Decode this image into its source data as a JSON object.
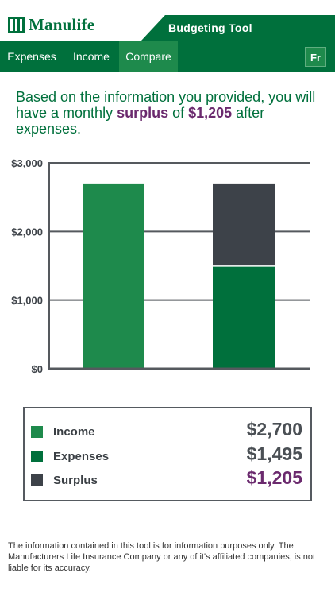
{
  "header": {
    "logo_text": "Manulife",
    "tool_title": "Budgeting Tool"
  },
  "nav": {
    "tabs": [
      {
        "label": "Expenses",
        "active": false
      },
      {
        "label": "Income",
        "active": false
      },
      {
        "label": "Compare",
        "active": true
      }
    ],
    "language_button": "Fr"
  },
  "summary": {
    "prefix": "Based on the information you provided, you will have a monthly ",
    "status_word": "surplus",
    "middle": " of ",
    "amount": "$1,205",
    "suffix": " after expenses."
  },
  "chart_data": {
    "type": "bar",
    "stacked": true,
    "categories": [
      "",
      ""
    ],
    "series": [
      {
        "name": "Income",
        "values": [
          2700,
          0
        ],
        "color": "#1e8a4c"
      },
      {
        "name": "Expenses",
        "values": [
          0,
          1495
        ],
        "color": "#00703c"
      },
      {
        "name": "Surplus",
        "values": [
          0,
          1205
        ],
        "color": "#3d4249"
      }
    ],
    "y_ticks": [
      "$0",
      "$1,000",
      "$2,000",
      "$3,000"
    ],
    "ylim": [
      0,
      3000
    ],
    "grid": true,
    "legend": "below"
  },
  "legend": {
    "items": [
      {
        "label": "Income",
        "value": "$2,700",
        "color": "#1e8a4c",
        "highlight": false
      },
      {
        "label": "Expenses",
        "value": "$1,495",
        "color": "#00703c",
        "highlight": false
      },
      {
        "label": "Surplus",
        "value": "$1,205",
        "color": "#3d4249",
        "highlight": true
      }
    ]
  },
  "disclaimer": "The information contained in this tool is for information purposes only. The Manufacturers Life Insurance Company or any of it's affiliated companies, is not liable for its accuracy."
}
